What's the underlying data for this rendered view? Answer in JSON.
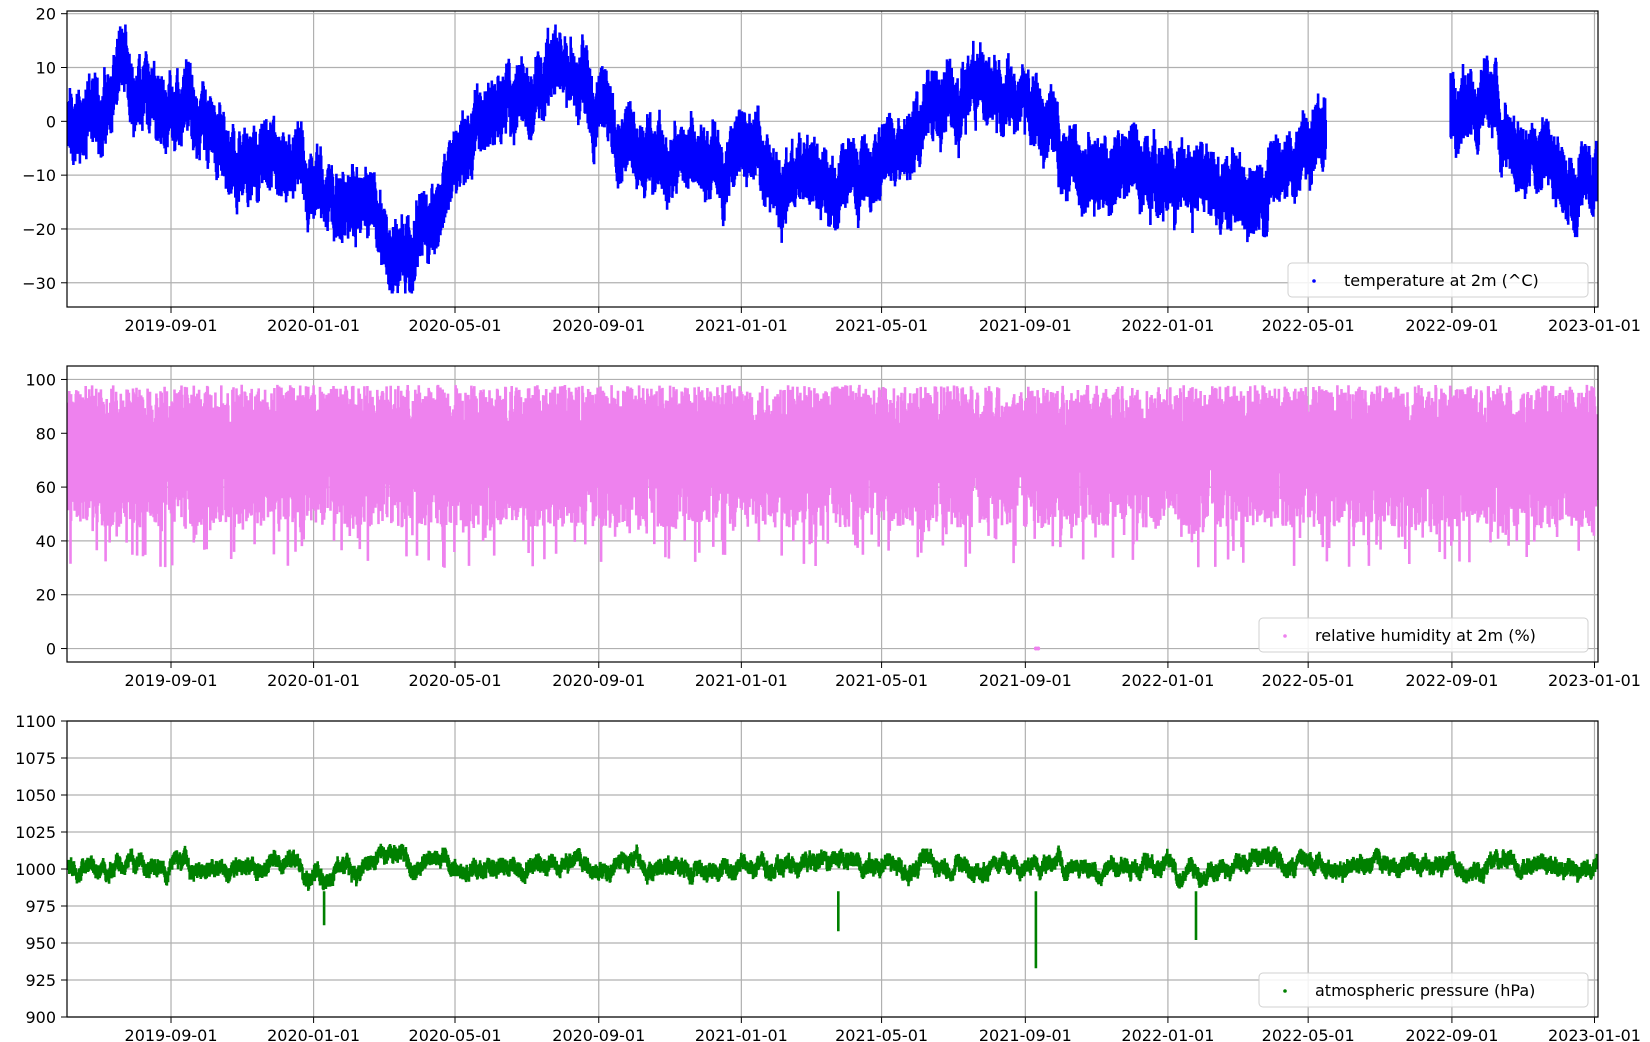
{
  "chart_data": [
    {
      "type": "scatter",
      "title": "",
      "xlabel": "",
      "ylabel": "",
      "x_range": [
        "2019-06-04",
        "2023-01-04"
      ],
      "x_ticks": [
        "2019-09-01",
        "2020-01-01",
        "2020-05-01",
        "2020-09-01",
        "2021-01-01",
        "2021-05-01",
        "2021-09-01",
        "2022-01-01",
        "2022-05-01",
        "2022-09-01",
        "2023-01-01"
      ],
      "ylim": [
        -34.5,
        20.5
      ],
      "y_ticks": [
        -30,
        -20,
        -10,
        0,
        10,
        20
      ],
      "grid": true,
      "legend_position": "lower-right",
      "color": "#0000ff",
      "series": [
        {
          "name": "temperature at 2m (^C)",
          "mean": [
            [
              "2019-06-05",
              -3
            ],
            [
              "2019-06-20",
              0
            ],
            [
              "2019-07-05",
              3
            ],
            [
              "2019-07-20",
              8
            ],
            [
              "2019-08-05",
              7
            ],
            [
              "2019-08-20",
              3
            ],
            [
              "2019-09-05",
              4
            ],
            [
              "2019-09-20",
              2
            ],
            [
              "2019-10-05",
              -1
            ],
            [
              "2019-10-20",
              -7
            ],
            [
              "2019-11-05",
              -9
            ],
            [
              "2019-11-20",
              -8
            ],
            [
              "2019-12-05",
              -12
            ],
            [
              "2019-12-20",
              -11
            ],
            [
              "2020-01-05",
              -13
            ],
            [
              "2020-01-20",
              -15
            ],
            [
              "2020-02-05",
              -16
            ],
            [
              "2020-02-20",
              -17
            ],
            [
              "2020-03-05",
              -22
            ],
            [
              "2020-03-20",
              -26
            ],
            [
              "2020-04-05",
              -18
            ],
            [
              "2020-04-20",
              -14
            ],
            [
              "2020-05-05",
              -6
            ],
            [
              "2020-05-20",
              -2
            ],
            [
              "2020-06-05",
              3
            ],
            [
              "2020-06-20",
              3
            ],
            [
              "2020-07-05",
              6
            ],
            [
              "2020-07-20",
              8
            ],
            [
              "2020-08-05",
              9
            ],
            [
              "2020-08-20",
              6
            ],
            [
              "2020-09-05",
              2
            ],
            [
              "2020-09-20",
              -1
            ],
            [
              "2020-10-05",
              -3
            ],
            [
              "2020-10-20",
              -6
            ],
            [
              "2020-11-05",
              -8
            ],
            [
              "2020-11-20",
              -10
            ],
            [
              "2020-12-05",
              -10
            ],
            [
              "2020-12-20",
              -8
            ],
            [
              "2021-01-05",
              -5
            ],
            [
              "2021-01-20",
              -7
            ],
            [
              "2021-02-05",
              -12
            ],
            [
              "2021-02-20",
              -10
            ],
            [
              "2021-03-05",
              -11
            ],
            [
              "2021-03-20",
              -12
            ],
            [
              "2021-04-05",
              -11
            ],
            [
              "2021-04-20",
              -9
            ],
            [
              "2021-05-05",
              -7
            ],
            [
              "2021-05-20",
              -4
            ],
            [
              "2021-06-05",
              1
            ],
            [
              "2021-06-20",
              3
            ],
            [
              "2021-07-05",
              5
            ],
            [
              "2021-07-20",
              6
            ],
            [
              "2021-08-05",
              6
            ],
            [
              "2021-08-20",
              4
            ],
            [
              "2021-09-05",
              3
            ],
            [
              "2021-09-20",
              0
            ],
            [
              "2021-10-05",
              -7
            ],
            [
              "2021-10-20",
              -9
            ],
            [
              "2021-11-05",
              -10
            ],
            [
              "2021-11-20",
              -9
            ],
            [
              "2021-12-05",
              -8
            ],
            [
              "2021-12-20",
              -11
            ],
            [
              "2022-01-05",
              -10
            ],
            [
              "2022-01-20",
              -12
            ],
            [
              "2022-02-05",
              -10
            ],
            [
              "2022-02-20",
              -13
            ],
            [
              "2022-03-05",
              -15
            ],
            [
              "2022-03-20",
              -11
            ],
            [
              "2022-04-05",
              -9
            ],
            [
              "2022-04-20",
              -8
            ],
            [
              "2022-05-05",
              -4
            ],
            [
              "2022-05-15",
              -1
            ]
          ],
          "mean_segment_2": [
            [
              "2022-09-01",
              4
            ],
            [
              "2022-09-20",
              2
            ],
            [
              "2022-10-05",
              4
            ],
            [
              "2022-10-20",
              -4
            ],
            [
              "2022-11-05",
              -7
            ],
            [
              "2022-11-20",
              -4
            ],
            [
              "2022-12-05",
              -12
            ],
            [
              "2022-12-20",
              -13
            ],
            [
              "2023-01-03",
              -10
            ]
          ],
          "max": 18,
          "min": -32,
          "gap": [
            "2022-05-16",
            "2022-08-31"
          ]
        }
      ]
    },
    {
      "type": "scatter",
      "title": "",
      "xlabel": "",
      "ylabel": "",
      "x_range": [
        "2019-06-04",
        "2023-01-04"
      ],
      "x_ticks": [
        "2019-09-01",
        "2020-01-01",
        "2020-05-01",
        "2020-09-01",
        "2021-01-01",
        "2021-05-01",
        "2021-09-01",
        "2022-01-01",
        "2022-05-01",
        "2022-09-01",
        "2023-01-01"
      ],
      "ylim": [
        -5,
        105
      ],
      "y_ticks": [
        0,
        20,
        40,
        60,
        80,
        100
      ],
      "grid": true,
      "legend_position": "lower-right",
      "color": "#ee82ee",
      "series": [
        {
          "name": "relative humidity at 2m (%)",
          "typical_range": [
            50,
            97
          ],
          "max": 100,
          "min": 0,
          "outliers": [
            [
              "2021-09-10",
              0
            ],
            [
              "2021-09-12",
              0
            ]
          ]
        }
      ]
    },
    {
      "type": "scatter",
      "title": "",
      "xlabel": "",
      "ylabel": "",
      "x_range": [
        "2019-06-04",
        "2023-01-04"
      ],
      "x_ticks": [
        "2019-09-01",
        "2020-01-01",
        "2020-05-01",
        "2020-09-01",
        "2021-01-01",
        "2021-05-01",
        "2021-09-01",
        "2022-01-01",
        "2022-05-01",
        "2022-09-01",
        "2023-01-01"
      ],
      "ylim": [
        900,
        1100
      ],
      "y_ticks": [
        900,
        925,
        950,
        975,
        1000,
        1025,
        1050,
        1075,
        1100
      ],
      "grid": true,
      "legend_position": "lower-right",
      "color": "#008000",
      "series": [
        {
          "name": "atmospheric pressure (hPa)",
          "mean": 1003,
          "max": 1035,
          "min": 933,
          "dips": [
            [
              "2021-09-10",
              933
            ],
            [
              "2022-01-25",
              952
            ],
            [
              "2021-03-25",
              958
            ],
            [
              "2020-01-10",
              962
            ]
          ]
        }
      ]
    }
  ]
}
